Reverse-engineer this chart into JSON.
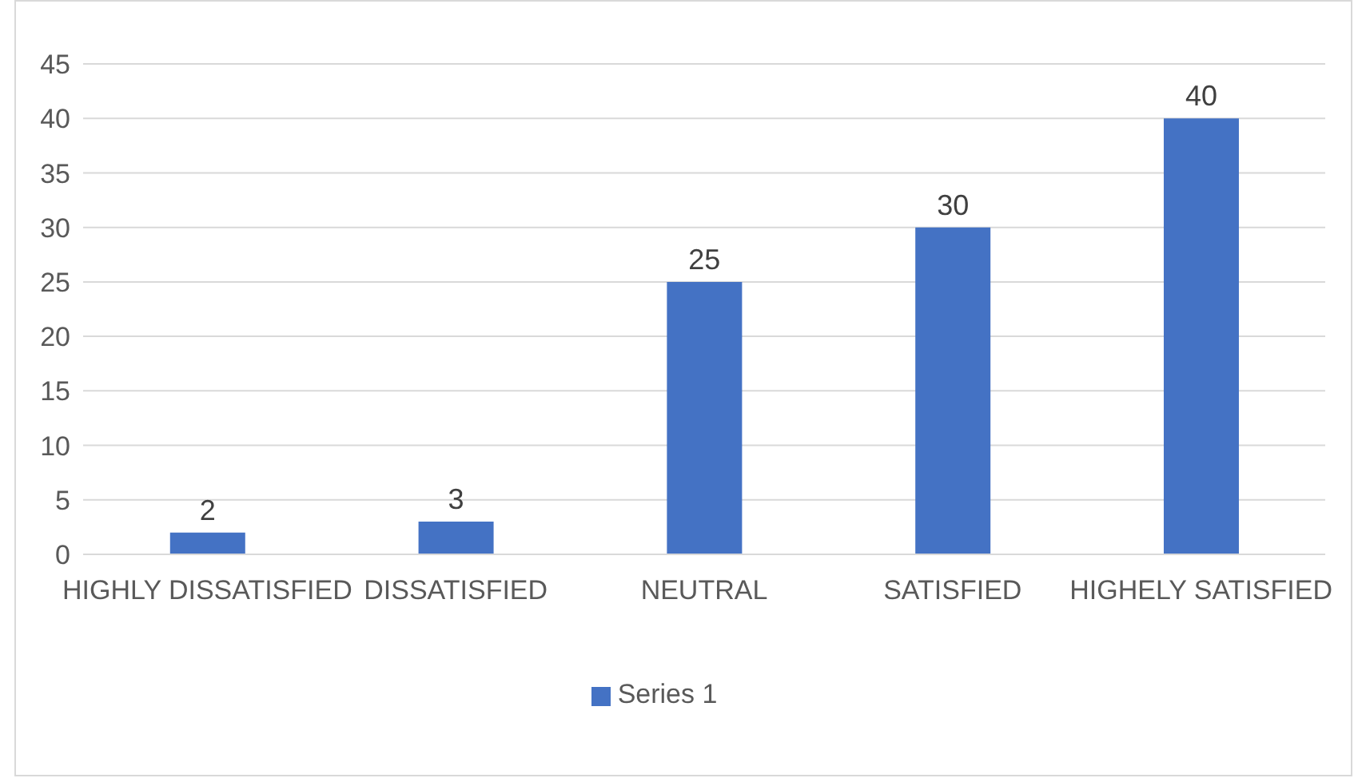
{
  "chart_data": {
    "type": "bar",
    "categories": [
      "HIGHLY DISSATISFIED",
      "DISSATISFIED",
      "NEUTRAL",
      "SATISFIED",
      "HIGHELY SATISFIED"
    ],
    "series": [
      {
        "name": "Series 1",
        "color": "#4472c4",
        "values": [
          2,
          3,
          25,
          30,
          40
        ]
      }
    ],
    "ylim": [
      0,
      45
    ],
    "yticks": [
      0,
      5,
      10,
      15,
      20,
      25,
      30,
      35,
      40,
      45
    ],
    "grid": "y",
    "legend": "bottom",
    "data_labels": true
  }
}
